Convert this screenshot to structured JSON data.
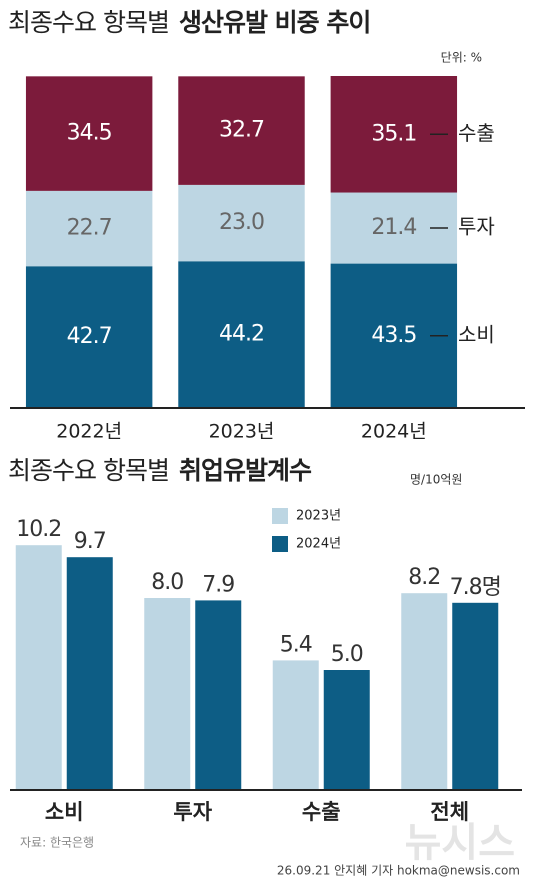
{
  "chart_data": [
    {
      "type": "stacked-bar",
      "title": "최종수요 항목별",
      "title_bold": "생산유발 비중 추이",
      "unit": "단위: %",
      "categories": [
        "2022년",
        "2023년",
        "2024년"
      ],
      "series": [
        {
          "name": "소비",
          "color": "#0d5d85",
          "values": [
            42.7,
            44.2,
            43.5
          ]
        },
        {
          "name": "투자",
          "color": "#bdd6e3",
          "values": [
            22.7,
            23.0,
            21.4
          ],
          "value_labels": [
            "22.7",
            "23.0",
            "21.4"
          ]
        },
        {
          "name": "수출",
          "color": "#7c1b3b",
          "values": [
            34.5,
            32.7,
            35.1
          ]
        }
      ],
      "ylim": [
        0,
        100
      ],
      "legend": "right"
    },
    {
      "type": "grouped-bar",
      "title": "최종수요 항목별",
      "title_bold": "취업유발계수",
      "unit": "명/10억원",
      "categories": [
        "소비",
        "투자",
        "수출",
        "전체"
      ],
      "series": [
        {
          "name": "2023년",
          "color": "#bdd6e3",
          "values": [
            10.2,
            8.0,
            5.4,
            8.2
          ],
          "value_labels": [
            "10.2",
            "8.0",
            "5.4",
            "8.2"
          ]
        },
        {
          "name": "2024년",
          "color": "#0d5d85",
          "values": [
            9.7,
            7.9,
            5.0,
            7.8
          ],
          "value_labels": [
            "9.7",
            "7.9",
            "5.0",
            "7.8명"
          ]
        }
      ],
      "ylim": [
        0,
        10.5
      ],
      "legend": "top-right"
    }
  ],
  "source": "자료: 한국은행",
  "watermark": "뉴시스",
  "credit": "26.09.21 안지혜 기자 hokma@newsis.com"
}
